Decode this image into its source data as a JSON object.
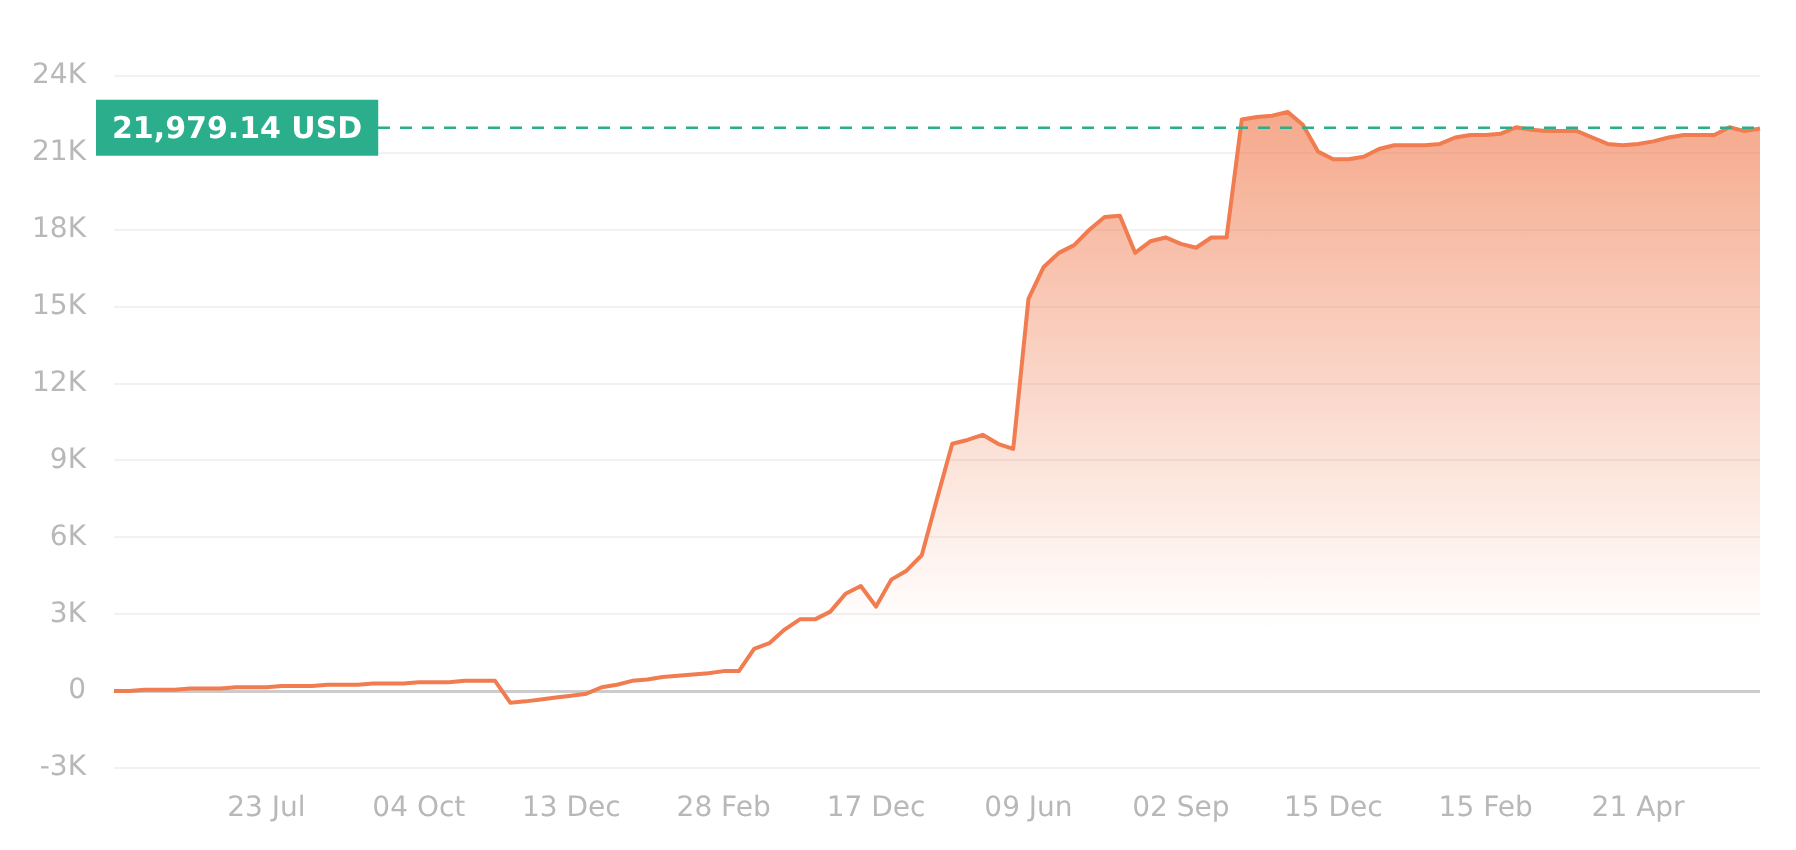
{
  "chart_data": {
    "type": "area",
    "categories": [
      null,
      null,
      null,
      null,
      null,
      null,
      null,
      null,
      null,
      null,
      "23 Jul",
      null,
      null,
      null,
      null,
      null,
      null,
      null,
      null,
      null,
      "04 Oct",
      null,
      null,
      null,
      null,
      null,
      null,
      null,
      null,
      null,
      "13 Dec",
      null,
      null,
      null,
      null,
      null,
      null,
      null,
      null,
      null,
      "28 Feb",
      null,
      null,
      null,
      null,
      null,
      null,
      null,
      null,
      null,
      "17 Dec",
      null,
      null,
      null,
      null,
      null,
      null,
      null,
      null,
      null,
      "09 Jun",
      null,
      null,
      null,
      null,
      null,
      null,
      null,
      null,
      null,
      "02 Sep",
      null,
      null,
      null,
      null,
      null,
      null,
      null,
      null,
      null,
      "15 Dec",
      null,
      null,
      null,
      null,
      null,
      null,
      null,
      null,
      null,
      "15 Feb",
      null,
      null,
      null,
      null,
      null,
      null,
      null,
      null,
      null,
      "21 Apr",
      null,
      null,
      null,
      null,
      null,
      null,
      null,
      null
    ],
    "series": [
      {
        "color": "#f07c50",
        "values": [
          0,
          0,
          50,
          50,
          50,
          100,
          100,
          100,
          150,
          150,
          150,
          200,
          200,
          200,
          250,
          250,
          250,
          300,
          300,
          300,
          350,
          350,
          350,
          400,
          400,
          400,
          -450,
          -400,
          -330,
          -250,
          -180,
          -100,
          150,
          250,
          400,
          450,
          550,
          600,
          650,
          700,
          780,
          780,
          1650,
          1870,
          2400,
          2800,
          2800,
          3100,
          3800,
          4100,
          3300,
          4350,
          4700,
          5300,
          7500,
          9650,
          9800,
          10000,
          9650,
          9450,
          15300,
          16550,
          17100,
          17400,
          18000,
          18500,
          18550,
          17100,
          17550,
          17700,
          17450,
          17300,
          17700,
          17700,
          22300,
          22400,
          22450,
          22600,
          22100,
          21050,
          20750,
          20750,
          20850,
          21150,
          21300,
          21300,
          21300,
          21350,
          21600,
          21700,
          21700,
          21750,
          22000,
          21900,
          21850,
          21850,
          21850,
          21600,
          21350,
          21300,
          21350,
          21450,
          21600,
          21700,
          21700,
          21700,
          22000,
          21850,
          21950
        ]
      }
    ],
    "ylim": [
      -3000,
      24000
    ],
    "yticks": [
      {
        "value": -3000,
        "label": "-3K"
      },
      {
        "value": 0,
        "label": "0"
      },
      {
        "value": 3000,
        "label": "3K"
      },
      {
        "value": 6000,
        "label": "6K"
      },
      {
        "value": 9000,
        "label": "9K"
      },
      {
        "value": 12000,
        "label": "12K"
      },
      {
        "value": 15000,
        "label": "15K"
      },
      {
        "value": 18000,
        "label": "18K"
      },
      {
        "value": 21000,
        "label": "21K"
      },
      {
        "value": 24000,
        "label": "24K"
      }
    ],
    "ref_lines": [
      {
        "axis": "y",
        "value": 21979.14,
        "label": "21,979.14 USD",
        "color": "#2bae8c",
        "line_style": "dashed"
      }
    ],
    "grid": "y",
    "legend": false,
    "marker": "none",
    "line_style": "solid"
  }
}
